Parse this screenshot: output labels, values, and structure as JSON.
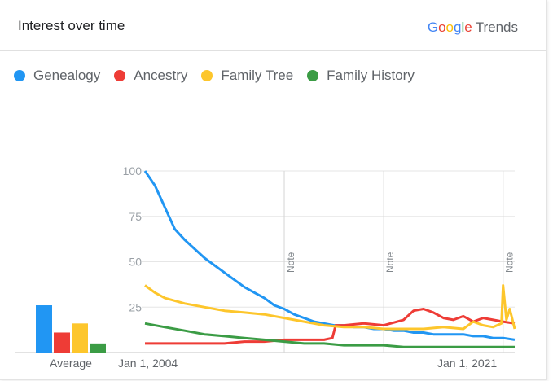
{
  "header": {
    "title": "Interest over time",
    "brand_google": [
      "G",
      "o",
      "o",
      "g",
      "l",
      "e"
    ],
    "brand_google_colors": [
      "#4285f4",
      "#ea4335",
      "#fbbc05",
      "#4285f4",
      "#34a853",
      "#ea4335"
    ],
    "brand_trends": "Trends"
  },
  "legend": [
    {
      "label": "Genealogy",
      "color": "#2196f3"
    },
    {
      "label": "Ancestry",
      "color": "#ee3c36"
    },
    {
      "label": "Family Tree",
      "color": "#fdc62c"
    },
    {
      "label": "Family History",
      "color": "#3b9c45"
    }
  ],
  "chart_data": {
    "type": "line",
    "y_ticks": [
      "100",
      "75",
      "50",
      "25"
    ],
    "ylim": [
      0,
      100
    ],
    "x_labels": [
      "Jan 1, 2004",
      "Jan 1, 2021"
    ],
    "x_range": [
      "2004-01",
      "2022-08"
    ],
    "average_label": "Average",
    "notes": [
      {
        "date": "2011-01",
        "label": "Note"
      },
      {
        "date": "2016-01",
        "label": "Note"
      },
      {
        "date": "2022-01",
        "label": "Note"
      }
    ],
    "averages": {
      "Genealogy": 26,
      "Ancestry": 11,
      "Family Tree": 16,
      "Family History": 5
    },
    "series": [
      {
        "name": "Genealogy",
        "color": "#2196f3",
        "points": [
          [
            "2004-01",
            100
          ],
          [
            "2004-07",
            92
          ],
          [
            "2005-01",
            80
          ],
          [
            "2005-07",
            68
          ],
          [
            "2006-01",
            62
          ],
          [
            "2006-07",
            57
          ],
          [
            "2007-01",
            52
          ],
          [
            "2007-07",
            48
          ],
          [
            "2008-01",
            44
          ],
          [
            "2008-07",
            40
          ],
          [
            "2009-01",
            36
          ],
          [
            "2009-07",
            33
          ],
          [
            "2010-01",
            30
          ],
          [
            "2010-07",
            26
          ],
          [
            "2011-01",
            24
          ],
          [
            "2011-07",
            21
          ],
          [
            "2012-01",
            19
          ],
          [
            "2012-07",
            17
          ],
          [
            "2013-01",
            16
          ],
          [
            "2013-07",
            15
          ],
          [
            "2014-01",
            15
          ],
          [
            "2014-07",
            14
          ],
          [
            "2015-01",
            14
          ],
          [
            "2015-07",
            13
          ],
          [
            "2016-01",
            13
          ],
          [
            "2016-07",
            12
          ],
          [
            "2017-01",
            12
          ],
          [
            "2017-07",
            11
          ],
          [
            "2018-01",
            11
          ],
          [
            "2018-07",
            10
          ],
          [
            "2019-01",
            10
          ],
          [
            "2019-07",
            10
          ],
          [
            "2020-01",
            10
          ],
          [
            "2020-07",
            9
          ],
          [
            "2021-01",
            9
          ],
          [
            "2021-07",
            8
          ],
          [
            "2022-01",
            8
          ],
          [
            "2022-08",
            7
          ]
        ]
      },
      {
        "name": "Ancestry",
        "color": "#ee3c36",
        "points": [
          [
            "2004-01",
            5
          ],
          [
            "2005-01",
            5
          ],
          [
            "2006-01",
            5
          ],
          [
            "2007-01",
            5
          ],
          [
            "2008-01",
            5
          ],
          [
            "2009-01",
            6
          ],
          [
            "2010-01",
            6
          ],
          [
            "2011-01",
            7
          ],
          [
            "2012-01",
            7
          ],
          [
            "2013-01",
            7
          ],
          [
            "2013-06",
            8
          ],
          [
            "2013-08",
            15
          ],
          [
            "2014-01",
            15
          ],
          [
            "2015-01",
            16
          ],
          [
            "2016-01",
            15
          ],
          [
            "2017-01",
            18
          ],
          [
            "2017-07",
            23
          ],
          [
            "2018-01",
            24
          ],
          [
            "2018-07",
            22
          ],
          [
            "2019-01",
            19
          ],
          [
            "2019-07",
            18
          ],
          [
            "2020-01",
            20
          ],
          [
            "2020-07",
            17
          ],
          [
            "2021-01",
            19
          ],
          [
            "2021-07",
            18
          ],
          [
            "2022-01",
            17
          ],
          [
            "2022-08",
            16
          ]
        ]
      },
      {
        "name": "Family Tree",
        "color": "#fdc62c",
        "points": [
          [
            "2004-01",
            37
          ],
          [
            "2004-07",
            33
          ],
          [
            "2005-01",
            30
          ],
          [
            "2006-01",
            27
          ],
          [
            "2007-01",
            25
          ],
          [
            "2008-01",
            23
          ],
          [
            "2009-01",
            22
          ],
          [
            "2010-01",
            21
          ],
          [
            "2011-01",
            19
          ],
          [
            "2012-01",
            17
          ],
          [
            "2013-01",
            15
          ],
          [
            "2014-01",
            14
          ],
          [
            "2015-01",
            14
          ],
          [
            "2016-01",
            13
          ],
          [
            "2017-01",
            13
          ],
          [
            "2018-01",
            13
          ],
          [
            "2019-01",
            14
          ],
          [
            "2020-01",
            13
          ],
          [
            "2020-07",
            17
          ],
          [
            "2021-01",
            15
          ],
          [
            "2021-07",
            14
          ],
          [
            "2021-12",
            16
          ],
          [
            "2022-01",
            37
          ],
          [
            "2022-03",
            18
          ],
          [
            "2022-05",
            24
          ],
          [
            "2022-08",
            13
          ]
        ]
      },
      {
        "name": "Family History",
        "color": "#3b9c45",
        "points": [
          [
            "2004-01",
            16
          ],
          [
            "2005-01",
            14
          ],
          [
            "2006-01",
            12
          ],
          [
            "2007-01",
            10
          ],
          [
            "2008-01",
            9
          ],
          [
            "2009-01",
            8
          ],
          [
            "2010-01",
            7
          ],
          [
            "2011-01",
            6
          ],
          [
            "2012-01",
            5
          ],
          [
            "2013-01",
            5
          ],
          [
            "2014-01",
            4
          ],
          [
            "2015-01",
            4
          ],
          [
            "2016-01",
            4
          ],
          [
            "2017-01",
            3
          ],
          [
            "2018-01",
            3
          ],
          [
            "2019-01",
            3
          ],
          [
            "2020-01",
            3
          ],
          [
            "2021-01",
            3
          ],
          [
            "2022-01",
            3
          ],
          [
            "2022-08",
            3
          ]
        ]
      }
    ]
  }
}
